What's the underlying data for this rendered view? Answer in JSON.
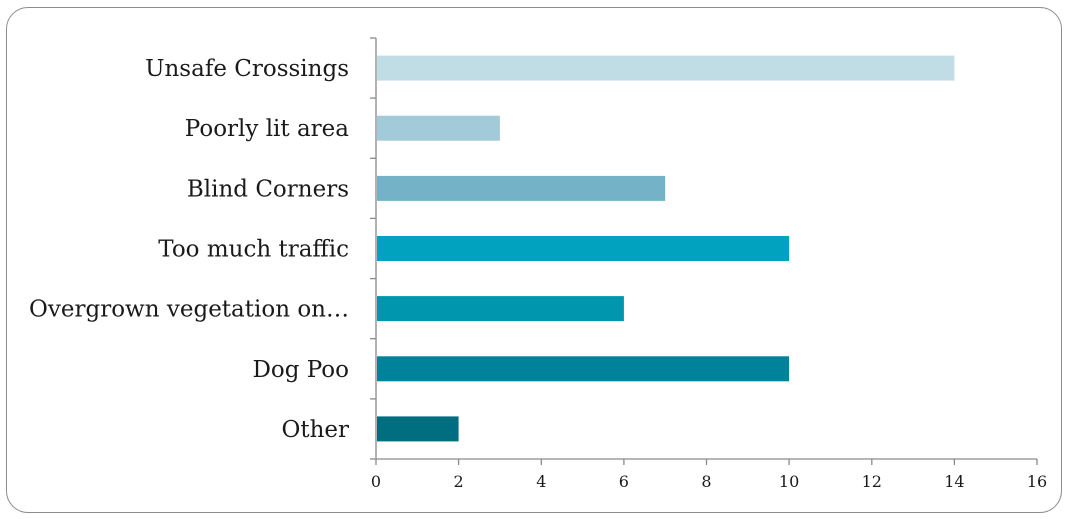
{
  "chart_data": {
    "type": "bar",
    "orientation": "horizontal",
    "categories": [
      "Unsafe Crossings",
      "Poorly lit area",
      "Blind Corners",
      "Too much traffic",
      "Overgrown vegetation on…",
      "Dog Poo",
      "Other"
    ],
    "values": [
      14,
      3,
      7,
      10,
      6,
      10,
      2
    ],
    "bar_colors": [
      "#c0dce4",
      "#a3cad8",
      "#74b3c7",
      "#00a2bf",
      "#0096ae",
      "#00839a",
      "#006e80"
    ],
    "title": "",
    "xlabel": "",
    "ylabel": "",
    "xlim": [
      0,
      16
    ],
    "xticks": [
      0,
      2,
      4,
      6,
      8,
      10,
      12,
      14,
      16
    ],
    "xtick_labels": [
      "0",
      "2",
      "4",
      "6",
      "8",
      "10",
      "12",
      "14",
      "16"
    ],
    "grid": false,
    "legend": "none"
  }
}
